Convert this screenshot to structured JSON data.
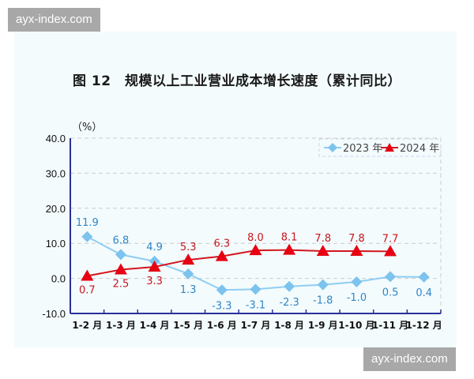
{
  "watermark": {
    "text": "ayx-index.com"
  },
  "title": "图 12　规模以上工业营业成本增长速度（累计同比）",
  "unit_label": "（%）",
  "legend": [
    {
      "label": "2023 年",
      "color": "#7cc3ee",
      "marker": "diamond"
    },
    {
      "label": "2024 年",
      "color": "#e60012",
      "marker": "triangle"
    }
  ],
  "colors": {
    "axis": "#2b2f9a",
    "grid": "#cccccc",
    "series_2023_label": "#2f86c8",
    "series_2024_label": "#c8161d",
    "panel_bg": "#f3fbfd"
  },
  "chart_data": {
    "type": "line",
    "title": "图 12 规模以上工业营业成本增长速度（累计同比）",
    "xlabel": "",
    "ylabel": "（%）",
    "ylim": [
      -10,
      40
    ],
    "yticks": [
      "40.0",
      "30.0",
      "20.0",
      "10.0",
      "0.0",
      "-10.0"
    ],
    "grid": true,
    "legend_position": "top-right",
    "categories": [
      "1-2 月",
      "1-3 月",
      "1-4 月",
      "1-5 月",
      "1-6 月",
      "1-7 月",
      "1-8 月",
      "1-9 月",
      "1-10 月",
      "1-11 月",
      "1-12 月"
    ],
    "series": [
      {
        "name": "2023 年",
        "values": [
          11.9,
          6.8,
          4.9,
          1.3,
          -3.3,
          -3.1,
          -2.3,
          -1.8,
          -1.0,
          0.5,
          0.4
        ]
      },
      {
        "name": "2024 年",
        "values": [
          0.7,
          2.5,
          3.3,
          5.3,
          6.3,
          8.0,
          8.1,
          7.8,
          7.8,
          7.7,
          null
        ]
      }
    ]
  }
}
